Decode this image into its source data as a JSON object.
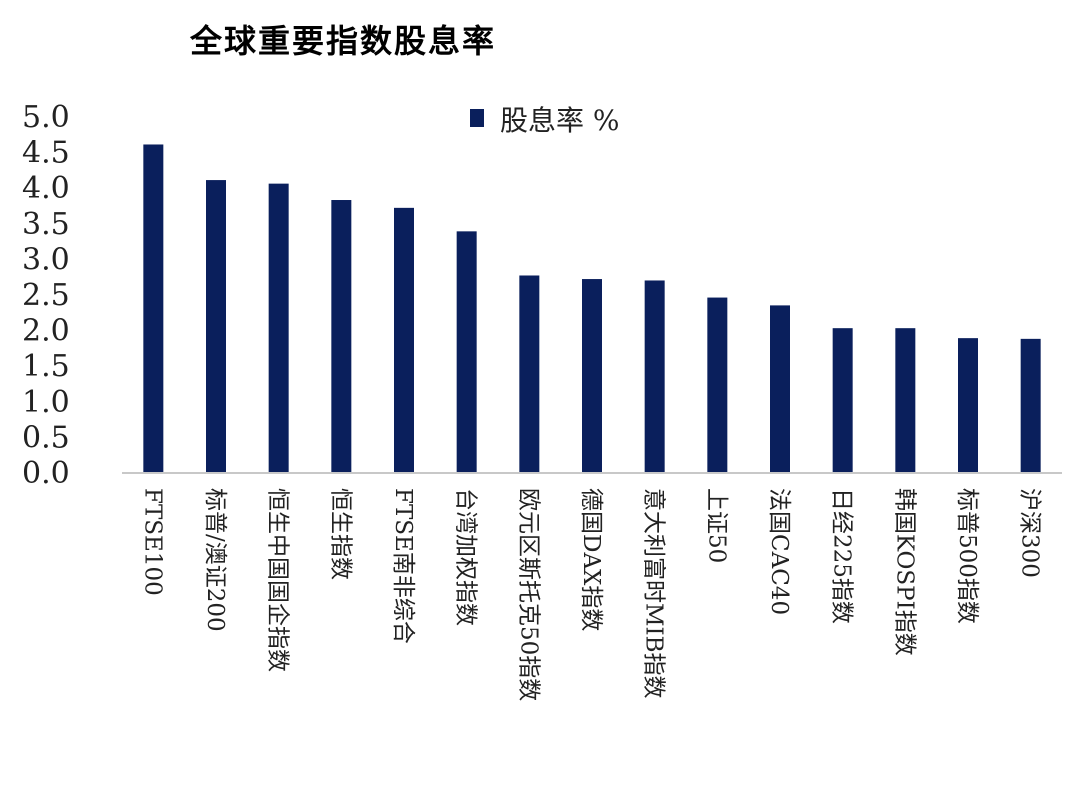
{
  "chart_data": {
    "type": "bar",
    "title": "全球重要指数股息率",
    "xlabel": "",
    "ylabel": "",
    "ylim": [
      0,
      5
    ],
    "yticks": [
      "0.0",
      "0.5",
      "1.0",
      "1.5",
      "2.0",
      "2.5",
      "3.0",
      "3.5",
      "4.0",
      "4.5",
      "5.0"
    ],
    "legend": {
      "position": "top-center"
    },
    "grid": false,
    "bar_color": "#0a1f5c",
    "categories": [
      "FTSE100",
      "标普/澳证200",
      "恒生中国国企指数",
      "恒生指数",
      "FTSE南非综合",
      "台湾加权指数",
      "欧元区斯托克50指数",
      "德国DAX指数",
      "意大利富时MIB指数",
      "上证50",
      "法国CAC40",
      "日经225指数",
      "韩国KOSPI指数",
      "标普500指数",
      "沪深300"
    ],
    "series": [
      {
        "name": "股息率 %",
        "values": [
          4.6,
          4.1,
          4.05,
          3.82,
          3.71,
          3.38,
          2.76,
          2.71,
          2.69,
          2.45,
          2.34,
          2.02,
          2.02,
          1.88,
          1.87
        ]
      }
    ]
  }
}
